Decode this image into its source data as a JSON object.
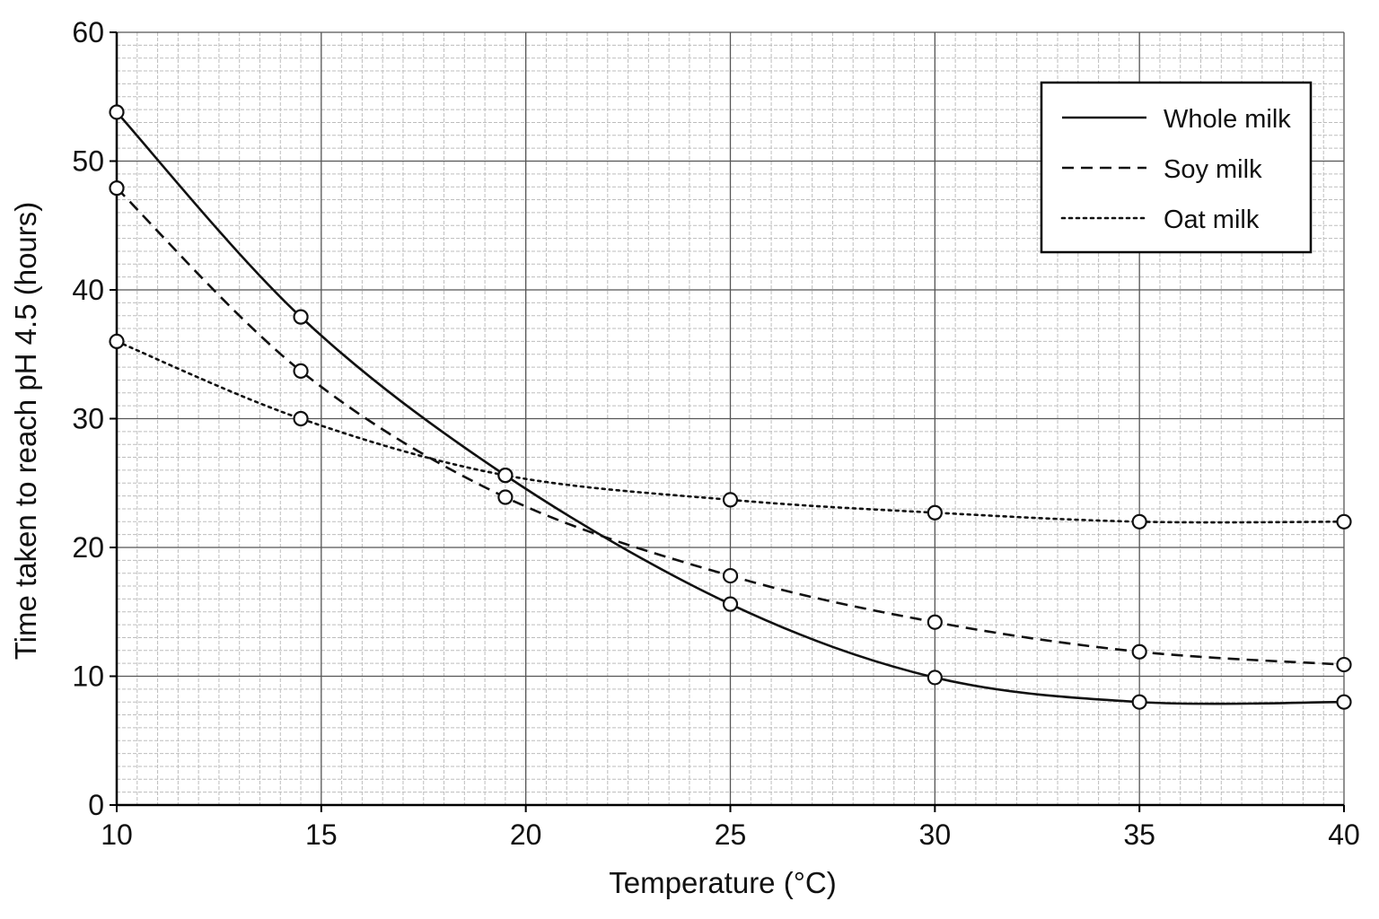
{
  "chart_data": {
    "type": "line",
    "title": "",
    "xlabel": "Temperature (°C)",
    "ylabel": "Time taken to reach pH 4.5 (hours)",
    "xlim": [
      10,
      40
    ],
    "ylim": [
      0,
      60
    ],
    "x_ticks": [
      "10",
      "15",
      "20",
      "25",
      "30",
      "35",
      "40"
    ],
    "y_ticks": [
      "0",
      "10",
      "20",
      "30",
      "40",
      "50",
      "60"
    ],
    "grid": true,
    "legend_position": "top-right",
    "series": [
      {
        "name": "Whole milk",
        "style": "solid",
        "points": [
          [
            10,
            53.8
          ],
          [
            14.5,
            37.9
          ],
          [
            19.5,
            25.6
          ],
          [
            25,
            15.6
          ],
          [
            30,
            9.9
          ],
          [
            35,
            8.0
          ],
          [
            40,
            8.0
          ]
        ]
      },
      {
        "name": "Soy milk",
        "style": "dashed",
        "points": [
          [
            10,
            47.9
          ],
          [
            14.5,
            33.7
          ],
          [
            19.5,
            23.9
          ],
          [
            25,
            17.8
          ],
          [
            30,
            14.2
          ],
          [
            35,
            11.9
          ],
          [
            40,
            10.9
          ]
        ]
      },
      {
        "name": "Oat milk",
        "style": "dotted",
        "points": [
          [
            10,
            36.0
          ],
          [
            14.5,
            30.0
          ],
          [
            19.5,
            25.6
          ],
          [
            25,
            23.7
          ],
          [
            30,
            22.7
          ],
          [
            35,
            22.0
          ],
          [
            40,
            22.0
          ]
        ]
      }
    ]
  }
}
